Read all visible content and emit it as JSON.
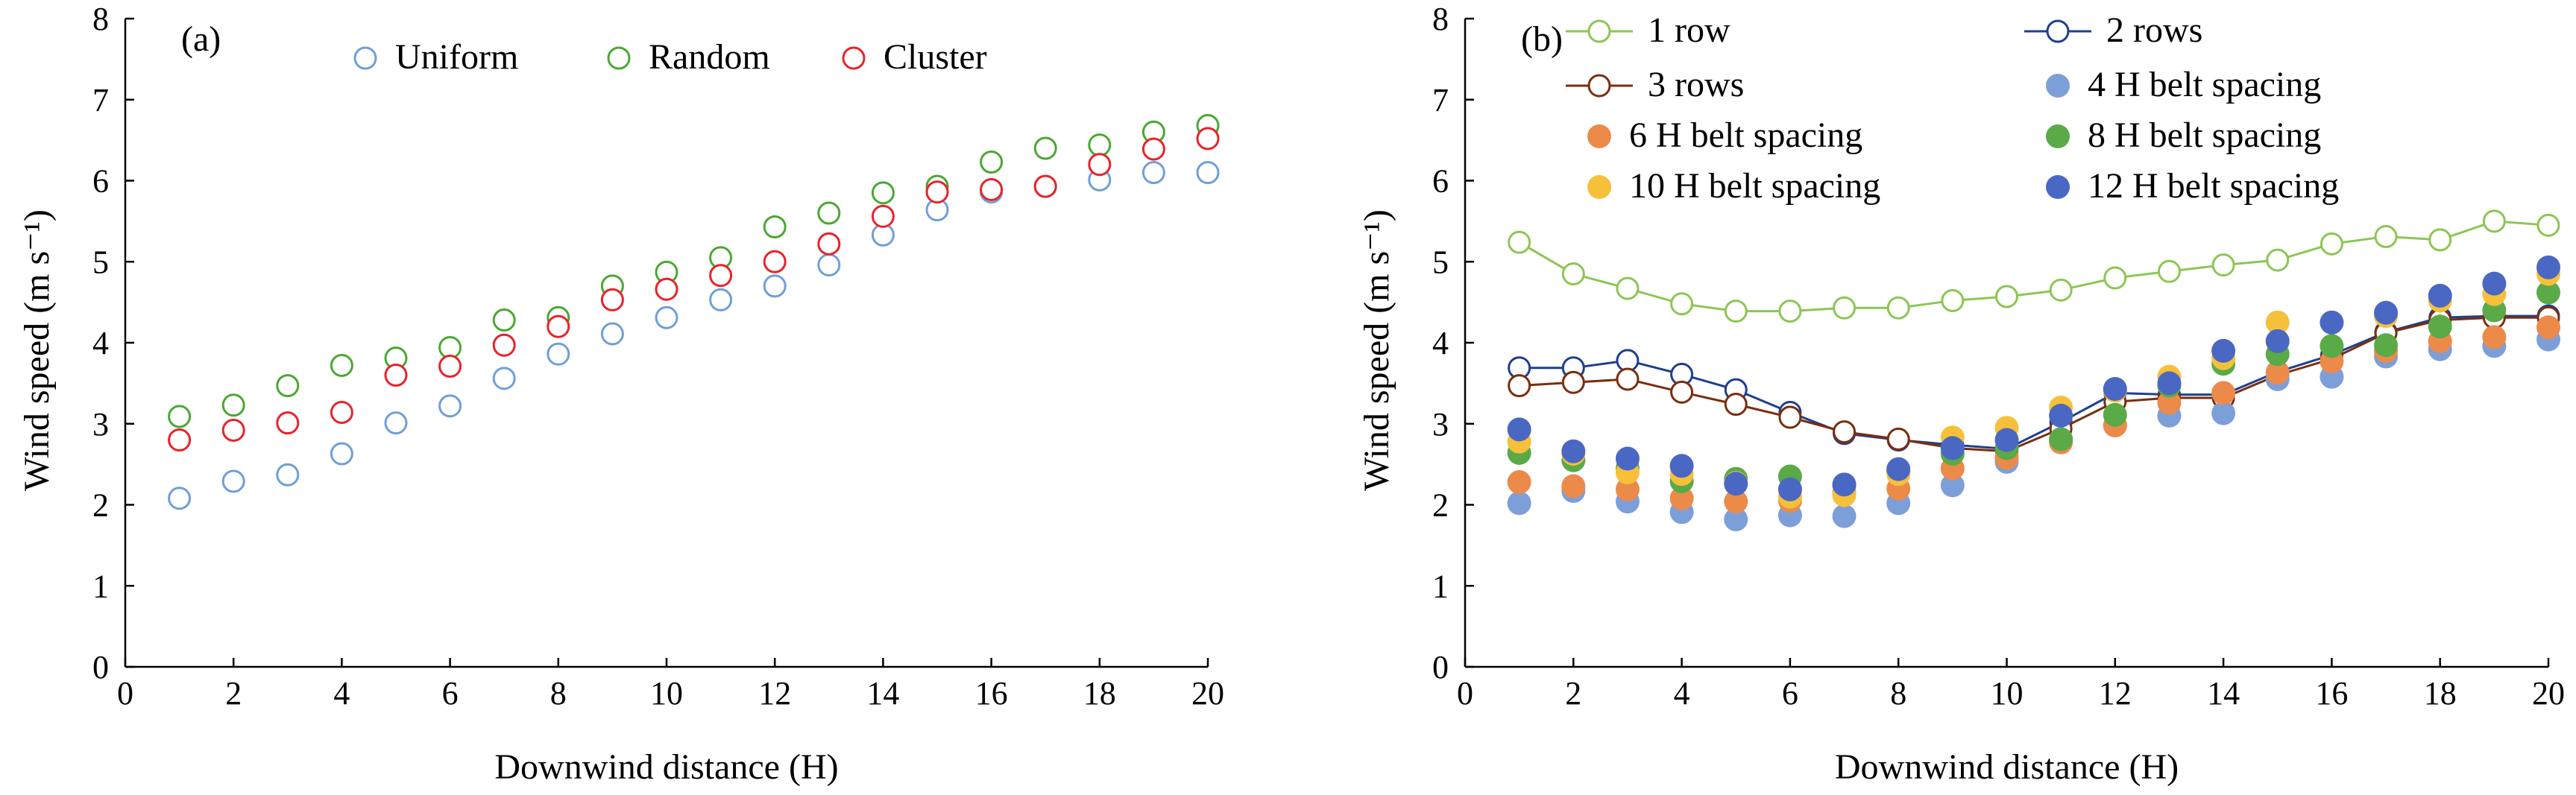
{
  "chart_data": [
    {
      "type": "scatter",
      "panel_label": "(a)",
      "xlabel": "Downwind distance (H)",
      "ylabel": "Wind speed (m s⁻¹)",
      "xlim": [
        0,
        20
      ],
      "ylim": [
        0,
        8
      ],
      "x_ticks": [
        0,
        2,
        4,
        6,
        8,
        10,
        12,
        14,
        16,
        18,
        20
      ],
      "y_ticks": [
        0,
        1,
        2,
        3,
        4,
        5,
        6,
        7,
        8
      ],
      "grid": false,
      "legend_position": "top",
      "x": [
        1,
        2,
        3,
        4,
        5,
        6,
        7,
        8,
        9,
        10,
        11,
        12,
        13,
        14,
        15,
        16,
        17,
        18,
        19,
        20
      ],
      "series": [
        {
          "name": "Uniform",
          "color": "#6f9fd8",
          "marker": "open-circle",
          "values": [
            2.08,
            2.29,
            2.37,
            2.63,
            3.01,
            3.22,
            3.56,
            3.86,
            4.11,
            4.31,
            4.53,
            4.7,
            4.96,
            5.33,
            5.64,
            5.86,
            5.93,
            6.01,
            6.1,
            6.1
          ]
        },
        {
          "name": "Random",
          "color": "#4aa832",
          "marker": "open-circle",
          "values": [
            3.09,
            3.23,
            3.47,
            3.72,
            3.81,
            3.94,
            4.28,
            4.31,
            4.7,
            4.87,
            5.05,
            5.43,
            5.6,
            5.85,
            5.93,
            6.23,
            6.4,
            6.44,
            6.6,
            6.68
          ]
        },
        {
          "name": "Cluster",
          "color": "#e8232a",
          "marker": "open-circle",
          "values": [
            2.8,
            2.92,
            3.01,
            3.14,
            3.6,
            3.71,
            3.97,
            4.2,
            4.53,
            4.66,
            4.83,
            5.0,
            5.22,
            5.56,
            5.86,
            5.89,
            5.93,
            6.2,
            6.39,
            6.52
          ]
        }
      ]
    },
    {
      "type": "line",
      "panel_label": "(b)",
      "xlabel": "Downwind distance (H)",
      "ylabel": "Wind speed (m s⁻¹)",
      "xlim": [
        0,
        20
      ],
      "ylim": [
        0,
        8
      ],
      "x_ticks": [
        0,
        2,
        4,
        6,
        8,
        10,
        12,
        14,
        16,
        18,
        20
      ],
      "y_ticks": [
        0,
        1,
        2,
        3,
        4,
        5,
        6,
        7,
        8
      ],
      "grid": false,
      "legend_position": "top",
      "x": [
        1,
        2,
        3,
        4,
        5,
        6,
        7,
        8,
        9,
        10,
        11,
        12,
        13,
        14,
        15,
        16,
        17,
        18,
        19,
        20
      ],
      "series": [
        {
          "name": "1 row",
          "color": "#8cc654",
          "marker": "open-circle-line",
          "values": [
            5.24,
            4.85,
            4.67,
            4.48,
            4.39,
            4.39,
            4.43,
            4.43,
            4.52,
            4.57,
            4.65,
            4.8,
            4.88,
            4.96,
            5.02,
            5.22,
            5.31,
            5.27,
            5.5,
            5.45
          ]
        },
        {
          "name": "2 rows",
          "color": "#1f3f8f",
          "marker": "open-circle-line",
          "values": [
            3.69,
            3.69,
            3.78,
            3.61,
            3.42,
            3.14,
            2.88,
            2.8,
            2.74,
            2.69,
            3.02,
            3.38,
            3.36,
            3.36,
            3.64,
            3.85,
            4.13,
            4.31,
            4.33,
            4.33
          ]
        },
        {
          "name": "3 rows",
          "color": "#7a2e0e",
          "marker": "open-circle-line",
          "values": [
            3.47,
            3.51,
            3.55,
            3.39,
            3.24,
            3.08,
            2.9,
            2.81,
            2.7,
            2.66,
            2.94,
            3.27,
            3.32,
            3.32,
            3.6,
            3.8,
            4.12,
            4.28,
            4.31,
            4.31
          ]
        },
        {
          "name": "4 H belt spacing",
          "color": "#7d9fd9",
          "marker": "filled-circle",
          "values": [
            2.02,
            2.17,
            2.04,
            1.91,
            1.82,
            1.87,
            1.86,
            2.02,
            2.24,
            2.53,
            2.78,
            2.98,
            3.1,
            3.13,
            3.55,
            3.58,
            3.83,
            3.92,
            3.96,
            4.04
          ]
        },
        {
          "name": "6 H belt spacing",
          "color": "#ec8a4a",
          "marker": "filled-circle",
          "values": [
            2.28,
            2.23,
            2.19,
            2.08,
            2.04,
            2.05,
            2.15,
            2.2,
            2.45,
            2.58,
            2.77,
            2.98,
            3.26,
            3.38,
            3.63,
            3.77,
            3.9,
            4.02,
            4.07,
            4.19
          ]
        },
        {
          "name": "8 H belt spacing",
          "color": "#5aaa48",
          "marker": "filled-circle",
          "values": [
            2.64,
            2.55,
            2.45,
            2.29,
            2.32,
            2.35,
            2.24,
            2.41,
            2.63,
            2.7,
            2.81,
            3.11,
            3.47,
            3.74,
            3.86,
            3.96,
            3.97,
            4.2,
            4.4,
            4.62
          ]
        },
        {
          "name": "10 H belt spacing",
          "color": "#f6c03a",
          "marker": "filled-circle",
          "values": [
            2.78,
            2.63,
            2.4,
            2.38,
            2.27,
            2.1,
            2.12,
            2.38,
            2.83,
            2.95,
            3.2,
            3.41,
            3.58,
            3.81,
            4.25,
            4.25,
            4.33,
            4.52,
            4.6,
            4.85
          ]
        },
        {
          "name": "12 H belt spacing",
          "color": "#4a67c4",
          "marker": "filled-circle",
          "values": [
            2.93,
            2.66,
            2.57,
            2.48,
            2.26,
            2.19,
            2.25,
            2.44,
            2.7,
            2.8,
            3.1,
            3.43,
            3.5,
            3.9,
            4.02,
            4.25,
            4.37,
            4.58,
            4.73,
            4.93
          ]
        }
      ]
    }
  ]
}
